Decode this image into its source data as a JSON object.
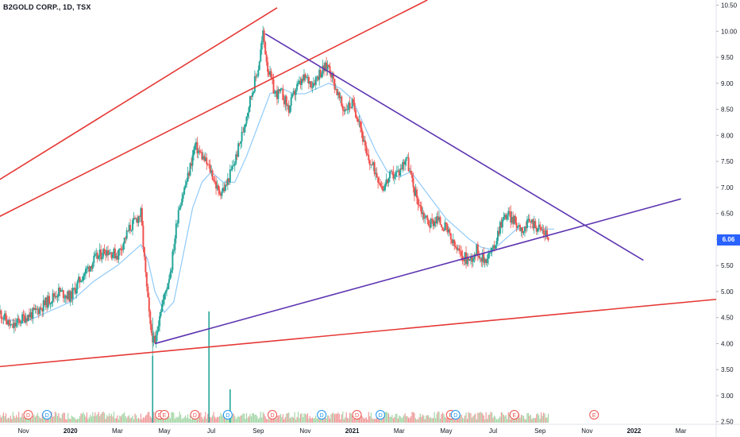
{
  "title": "B2GOLD CORP., 1D, TSX",
  "last_price": "6.06",
  "colors": {
    "up": "#26a69a",
    "down": "#ef5350",
    "ma": "#90caf9",
    "trend_red": "#e53935",
    "trend_purple": "#5e35b1",
    "badge": "#2962ff",
    "event_red": "#ef5350",
    "event_blue": "#2196f3"
  },
  "chart_data": {
    "type": "candlestick",
    "ylim": [
      2.45,
      10.6
    ],
    "y_ticks": [
      "2.50",
      "3.00",
      "3.50",
      "4.00",
      "4.50",
      "5.00",
      "5.50",
      "6.00",
      "6.50",
      "7.00",
      "7.50",
      "8.00",
      "8.50",
      "9.00",
      "9.50",
      "10.00",
      "10.50"
    ],
    "x_ticks": [
      "Nov",
      "2020",
      "Mar",
      "May",
      "Jul",
      "Sep",
      "Nov",
      "2021",
      "Mar",
      "May",
      "Jul",
      "Sep",
      "Nov",
      "2022",
      "Mar"
    ],
    "x_range_months": [
      0,
      30.5
    ],
    "x_tick_months": [
      1,
      3,
      5,
      7,
      9,
      11,
      13,
      15,
      17,
      19,
      21,
      23,
      25,
      27,
      29
    ],
    "bold_x_ticks": [
      "2020",
      "2021",
      "2022"
    ],
    "price_path": [
      [
        0.0,
        4.6
      ],
      [
        0.5,
        4.3
      ],
      [
        1.0,
        4.5
      ],
      [
        1.5,
        4.6
      ],
      [
        2.0,
        4.8
      ],
      [
        2.5,
        5.0
      ],
      [
        3.0,
        4.9
      ],
      [
        3.5,
        5.3
      ],
      [
        4.0,
        5.6
      ],
      [
        4.5,
        5.8
      ],
      [
        5.0,
        5.7
      ],
      [
        5.5,
        6.2
      ],
      [
        6.0,
        6.5
      ],
      [
        6.2,
        5.3
      ],
      [
        6.4,
        4.3
      ],
      [
        6.6,
        3.95
      ],
      [
        6.8,
        4.6
      ],
      [
        7.0,
        4.9
      ],
      [
        7.3,
        5.5
      ],
      [
        7.6,
        6.6
      ],
      [
        8.0,
        7.2
      ],
      [
        8.3,
        7.8
      ],
      [
        8.6,
        7.6
      ],
      [
        9.0,
        7.3
      ],
      [
        9.3,
        6.9
      ],
      [
        9.6,
        7.0
      ],
      [
        10.0,
        7.5
      ],
      [
        10.3,
        8.0
      ],
      [
        10.6,
        8.6
      ],
      [
        11.0,
        9.3
      ],
      [
        11.2,
        9.95
      ],
      [
        11.4,
        9.3
      ],
      [
        11.7,
        8.8
      ],
      [
        12.0,
        8.8
      ],
      [
        12.3,
        8.5
      ],
      [
        12.6,
        8.9
      ],
      [
        13.0,
        9.1
      ],
      [
        13.3,
        9.0
      ],
      [
        13.6,
        9.2
      ],
      [
        14.0,
        9.35
      ],
      [
        14.3,
        8.9
      ],
      [
        14.6,
        8.5
      ],
      [
        15.0,
        8.6
      ],
      [
        15.3,
        8.3
      ],
      [
        15.6,
        7.6
      ],
      [
        16.0,
        7.3
      ],
      [
        16.3,
        7.0
      ],
      [
        16.6,
        7.2
      ],
      [
        17.0,
        7.3
      ],
      [
        17.3,
        7.6
      ],
      [
        17.6,
        7.0
      ],
      [
        18.0,
        6.5
      ],
      [
        18.3,
        6.3
      ],
      [
        18.6,
        6.4
      ],
      [
        19.0,
        6.2
      ],
      [
        19.3,
        5.9
      ],
      [
        19.6,
        5.7
      ],
      [
        20.0,
        5.6
      ],
      [
        20.3,
        5.8
      ],
      [
        20.6,
        5.6
      ],
      [
        21.0,
        5.8
      ],
      [
        21.3,
        6.3
      ],
      [
        21.6,
        6.5
      ],
      [
        22.0,
        6.3
      ],
      [
        22.3,
        6.2
      ],
      [
        22.6,
        6.35
      ],
      [
        23.0,
        6.2
      ],
      [
        23.4,
        6.06
      ]
    ],
    "ma_path": [
      [
        0.0,
        4.5
      ],
      [
        1.0,
        4.4
      ],
      [
        2.0,
        4.6
      ],
      [
        3.0,
        4.8
      ],
      [
        4.0,
        5.2
      ],
      [
        5.0,
        5.5
      ],
      [
        5.5,
        5.7
      ],
      [
        6.0,
        5.9
      ],
      [
        6.3,
        5.6
      ],
      [
        6.6,
        5.0
      ],
      [
        7.0,
        4.6
      ],
      [
        7.4,
        4.8
      ],
      [
        7.8,
        5.7
      ],
      [
        8.2,
        6.6
      ],
      [
        8.6,
        7.1
      ],
      [
        9.0,
        7.3
      ],
      [
        9.5,
        7.1
      ],
      [
        10.0,
        7.1
      ],
      [
        10.5,
        7.6
      ],
      [
        11.0,
        8.2
      ],
      [
        11.5,
        8.8
      ],
      [
        12.0,
        8.9
      ],
      [
        12.5,
        8.8
      ],
      [
        13.0,
        8.8
      ],
      [
        13.5,
        8.9
      ],
      [
        14.0,
        9.0
      ],
      [
        14.5,
        8.9
      ],
      [
        15.0,
        8.7
      ],
      [
        15.5,
        8.2
      ],
      [
        16.0,
        7.7
      ],
      [
        16.5,
        7.3
      ],
      [
        17.0,
        7.2
      ],
      [
        17.5,
        7.3
      ],
      [
        18.0,
        7.0
      ],
      [
        18.5,
        6.7
      ],
      [
        19.0,
        6.4
      ],
      [
        19.5,
        6.2
      ],
      [
        20.0,
        6.0
      ],
      [
        20.5,
        5.85
      ],
      [
        21.0,
        5.8
      ],
      [
        21.5,
        6.0
      ],
      [
        22.0,
        6.2
      ],
      [
        22.5,
        6.25
      ],
      [
        23.0,
        6.2
      ],
      [
        23.6,
        6.2
      ]
    ],
    "trend_lines": [
      {
        "color": "red",
        "from": [
          -0.2,
          7.1
        ],
        "to": [
          11.8,
          10.45
        ]
      },
      {
        "color": "red",
        "from": [
          -0.2,
          6.4
        ],
        "to": [
          18.2,
          10.6
        ]
      },
      {
        "color": "red",
        "from": [
          -0.2,
          3.55
        ],
        "to": [
          30.5,
          4.85
        ]
      },
      {
        "color": "purple",
        "from": [
          11.3,
          9.95
        ],
        "to": [
          27.4,
          5.6
        ]
      },
      {
        "color": "purple",
        "from": [
          6.6,
          4.0
        ],
        "to": [
          29.0,
          6.78
        ]
      }
    ],
    "volume_spikes": [
      [
        6.5,
        0.6
      ],
      [
        8.9,
        1.0
      ],
      [
        9.8,
        0.3
      ]
    ],
    "event_markers": [
      {
        "month": 1.2,
        "letter": "D",
        "color": "red"
      },
      {
        "month": 2.0,
        "letter": "D",
        "color": "blue"
      },
      {
        "month": 6.8,
        "letter": "D",
        "color": "red"
      },
      {
        "month": 7.0,
        "letter": "E",
        "color": "red"
      },
      {
        "month": 8.3,
        "letter": "D",
        "color": "red"
      },
      {
        "month": 9.7,
        "letter": "D",
        "color": "blue"
      },
      {
        "month": 11.6,
        "letter": "D",
        "color": "red"
      },
      {
        "month": 13.7,
        "letter": "D",
        "color": "blue"
      },
      {
        "month": 15.2,
        "letter": "D",
        "color": "red"
      },
      {
        "month": 16.2,
        "letter": "D",
        "color": "blue"
      },
      {
        "month": 19.2,
        "letter": "E",
        "color": "red"
      },
      {
        "month": 19.4,
        "letter": "D",
        "color": "blue"
      },
      {
        "month": 21.9,
        "letter": "E",
        "color": "red"
      },
      {
        "month": 25.3,
        "letter": "E",
        "color": "red"
      }
    ]
  }
}
